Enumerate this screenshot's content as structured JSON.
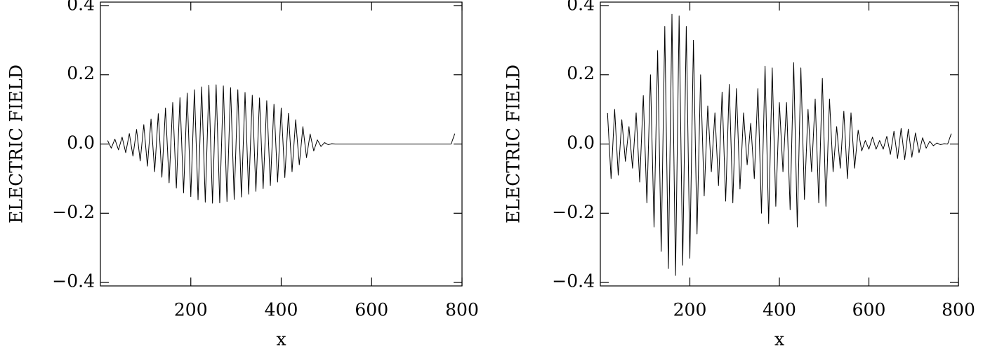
{
  "chart_data": [
    {
      "type": "line",
      "xlabel": "x",
      "ylabel": "ELECTRIC FIELD",
      "xlim": [
        0,
        800
      ],
      "ylim": [
        -0.41,
        0.41
      ],
      "xticks": [
        200,
        400,
        600,
        800
      ],
      "yticks": [
        {
          "value": -0.4,
          "label": "−0.4"
        },
        {
          "value": -0.2,
          "label": "−0.2"
        },
        {
          "value": 0,
          "label": "0.0"
        },
        0.2,
        0.4
      ],
      "color": "#000000",
      "x": [
        16,
        24,
        32,
        40,
        48,
        56,
        64,
        72,
        80,
        88,
        96,
        104,
        112,
        120,
        128,
        136,
        144,
        152,
        160,
        168,
        176,
        184,
        192,
        200,
        208,
        216,
        224,
        232,
        240,
        248,
        256,
        264,
        272,
        280,
        288,
        296,
        304,
        312,
        320,
        328,
        336,
        344,
        352,
        360,
        368,
        376,
        384,
        392,
        400,
        408,
        416,
        424,
        432,
        440,
        448,
        456,
        464,
        472,
        480,
        488,
        496,
        504,
        512,
        520,
        528,
        536,
        544,
        552,
        560,
        568,
        576,
        584,
        592,
        600,
        608,
        616,
        624,
        632,
        640,
        648,
        656,
        664,
        672,
        680,
        688,
        696,
        704,
        712,
        720,
        728,
        736,
        744,
        752,
        760,
        768,
        776,
        784
      ],
      "values": [
        0.01,
        -0.012,
        0.014,
        -0.017,
        0.02,
        -0.025,
        0.03,
        -0.035,
        0.042,
        -0.049,
        0.056,
        -0.064,
        0.072,
        -0.08,
        0.088,
        -0.096,
        0.104,
        -0.112,
        0.12,
        -0.127,
        0.134,
        -0.141,
        0.147,
        -0.152,
        0.157,
        -0.161,
        0.165,
        -0.168,
        0.17,
        -0.171,
        0.171,
        -0.17,
        0.168,
        -0.166,
        0.163,
        -0.16,
        0.157,
        -0.153,
        0.149,
        -0.145,
        0.141,
        -0.137,
        0.133,
        -0.129,
        0.125,
        -0.12,
        0.115,
        -0.11,
        0.104,
        -0.097,
        0.089,
        -0.08,
        0.07,
        -0.06,
        0.05,
        -0.039,
        0.029,
        -0.02,
        0.012,
        -0.007,
        0.004,
        -0.002,
        0.001,
        0,
        0,
        0,
        0,
        0,
        0,
        0,
        0,
        0,
        0,
        0,
        0,
        0,
        0,
        0,
        0,
        0,
        0,
        0,
        0,
        0,
        0,
        0,
        0,
        0,
        0,
        0,
        0,
        0,
        0,
        0,
        0,
        0,
        0.03
      ]
    },
    {
      "type": "line",
      "xlabel": "x",
      "ylabel": "ELECTRIC FIELD",
      "xlim": [
        0,
        800
      ],
      "ylim": [
        -0.41,
        0.41
      ],
      "xticks": [
        200,
        400,
        600,
        800
      ],
      "yticks": [
        {
          "value": -0.4,
          "label": "−0.4"
        },
        {
          "value": -0.2,
          "label": "−0.2"
        },
        {
          "value": 0,
          "label": "0.0"
        },
        0.2,
        0.4
      ],
      "color": "#000000",
      "x": [
        16,
        24,
        32,
        40,
        48,
        56,
        64,
        72,
        80,
        88,
        96,
        104,
        112,
        120,
        128,
        136,
        144,
        152,
        160,
        168,
        176,
        184,
        192,
        200,
        208,
        216,
        224,
        232,
        240,
        248,
        256,
        264,
        272,
        280,
        288,
        296,
        304,
        312,
        320,
        328,
        336,
        344,
        352,
        360,
        368,
        376,
        384,
        392,
        400,
        408,
        416,
        424,
        432,
        440,
        448,
        456,
        464,
        472,
        480,
        488,
        496,
        504,
        512,
        520,
        528,
        536,
        544,
        552,
        560,
        568,
        576,
        584,
        592,
        600,
        608,
        616,
        624,
        632,
        640,
        648,
        656,
        664,
        672,
        680,
        688,
        696,
        704,
        712,
        720,
        728,
        736,
        744,
        752,
        760,
        768,
        776,
        784
      ],
      "values": [
        0.09,
        -0.1,
        0.1,
        -0.09,
        0.07,
        -0.05,
        0.05,
        -0.07,
        0.09,
        -0.11,
        0.14,
        -0.17,
        0.2,
        -0.24,
        0.27,
        -0.31,
        0.34,
        -0.36,
        0.375,
        -0.38,
        0.37,
        -0.35,
        0.34,
        -0.33,
        0.3,
        -0.26,
        0.2,
        -0.15,
        0.11,
        -0.08,
        0.09,
        -0.12,
        0.15,
        -0.165,
        0.172,
        -0.17,
        0.16,
        -0.13,
        0.09,
        -0.06,
        0.06,
        -0.1,
        0.16,
        -0.2,
        0.225,
        -0.23,
        0.22,
        -0.18,
        0.12,
        -0.08,
        0.12,
        -0.19,
        0.235,
        -0.24,
        0.22,
        -0.16,
        0.1,
        -0.08,
        0.13,
        -0.17,
        0.19,
        -0.18,
        0.13,
        -0.08,
        0.05,
        -0.07,
        0.095,
        -0.1,
        0.09,
        -0.07,
        0.04,
        -0.02,
        0.01,
        -0.015,
        0.02,
        -0.015,
        0.01,
        -0.015,
        0.022,
        -0.03,
        0.037,
        -0.042,
        0.045,
        -0.045,
        0.043,
        -0.038,
        0.032,
        -0.025,
        0.018,
        -0.012,
        0.008,
        -0.005,
        0.003,
        -0.002,
        0.001,
        0,
        0.03
      ]
    }
  ]
}
